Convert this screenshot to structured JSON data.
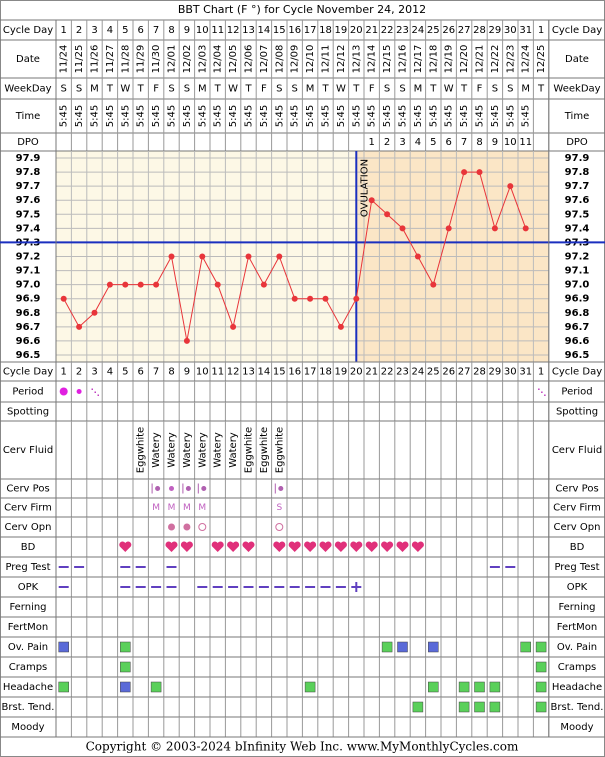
{
  "chart_data": {
    "type": "line",
    "title": "BBT Chart (F °) for Cycle November 24, 2012",
    "header_labels": [
      "Cycle Day",
      "Date",
      "WeekDay",
      "Time",
      "DPO"
    ],
    "categories": [
      "1",
      "2",
      "3",
      "4",
      "5",
      "6",
      "7",
      "8",
      "9",
      "10",
      "11",
      "12",
      "13",
      "14",
      "15",
      "16",
      "17",
      "18",
      "19",
      "20",
      "21",
      "22",
      "23",
      "24",
      "25",
      "26",
      "27",
      "28",
      "29",
      "30",
      "31",
      "1"
    ],
    "dates": [
      "11/24",
      "11/25",
      "11/26",
      "11/27",
      "11/28",
      "11/29",
      "11/30",
      "12/01",
      "12/02",
      "12/03",
      "12/04",
      "12/05",
      "12/06",
      "12/07",
      "12/08",
      "12/09",
      "12/10",
      "12/11",
      "12/12",
      "12/13",
      "12/14",
      "12/15",
      "12/16",
      "12/17",
      "12/18",
      "12/19",
      "12/20",
      "12/21",
      "12/22",
      "12/23",
      "12/24",
      "12/25"
    ],
    "weekdays": [
      "S",
      "S",
      "M",
      "T",
      "W",
      "T",
      "F",
      "S",
      "S",
      "M",
      "T",
      "W",
      "T",
      "F",
      "S",
      "S",
      "M",
      "T",
      "W",
      "T",
      "F",
      "S",
      "S",
      "M",
      "T",
      "W",
      "T",
      "F",
      "S",
      "S",
      "M",
      "T"
    ],
    "times": [
      "5:45",
      "5:45",
      "5:45",
      "5:45",
      "5:45",
      "5:45",
      "5:45",
      "5:45",
      "5:45",
      "5:45",
      "5:45",
      "5:45",
      "5:45",
      "5:45",
      "5:45",
      "5:45",
      "5:45",
      "5:45",
      "5:45",
      "5:45",
      "5:45",
      "5:45",
      "5:45",
      "5:45",
      "5:45",
      "5:45",
      "5:45",
      "5:45",
      "5:45",
      "5:45",
      "5:45",
      null
    ],
    "dpo": [
      null,
      null,
      null,
      null,
      null,
      null,
      null,
      null,
      null,
      null,
      null,
      null,
      null,
      null,
      null,
      null,
      null,
      null,
      null,
      null,
      "1",
      "2",
      "3",
      "4",
      "5",
      "6",
      "7",
      "8",
      "9",
      "10",
      "11",
      null
    ],
    "values": [
      96.9,
      96.7,
      96.8,
      97.0,
      97.0,
      97.0,
      97.0,
      97.2,
      96.6,
      97.2,
      97.0,
      96.7,
      97.2,
      97.0,
      97.2,
      96.9,
      96.9,
      96.9,
      96.7,
      96.9,
      97.6,
      97.5,
      97.4,
      97.2,
      97.0,
      97.4,
      97.8,
      97.8,
      97.4,
      97.7,
      97.4,
      null
    ],
    "color": "#e8353a",
    "ylim": [
      96.5,
      97.9
    ],
    "yticks": [
      97.9,
      97.8,
      97.7,
      97.6,
      97.5,
      97.4,
      97.3,
      97.2,
      97.1,
      {
        "value": 97.0,
        "label": "97.0"
      },
      96.9,
      96.8,
      96.7,
      96.6,
      96.5
    ],
    "coverline": 97.3,
    "coverline_color": "#1a2fbf",
    "ovulation_index": 19,
    "ovulation_label": "OVULATION",
    "follicular_color": "#fdf8e6",
    "luteal_color": "#fbe6c6",
    "observations": [
      {
        "label": "Period",
        "cells": [
          "dot",
          "dot-small",
          "spot",
          null,
          null,
          null,
          null,
          null,
          null,
          null,
          null,
          null,
          null,
          null,
          null,
          null,
          null,
          null,
          null,
          null,
          null,
          null,
          null,
          null,
          null,
          null,
          null,
          null,
          null,
          null,
          null,
          "spot"
        ]
      },
      {
        "label": "Spotting",
        "cells": [
          null,
          null,
          null,
          null,
          null,
          null,
          null,
          null,
          null,
          null,
          null,
          null,
          null,
          null,
          null,
          null,
          null,
          null,
          null,
          null,
          null,
          null,
          null,
          null,
          null,
          null,
          null,
          null,
          null,
          null,
          null,
          null
        ]
      },
      {
        "label": "Cerv Fluid",
        "cells": [
          null,
          null,
          null,
          null,
          null,
          "Eggwhite",
          "Watery",
          "Watery",
          "Watery",
          "Watery",
          "Watery",
          "Watery",
          "Eggwhite",
          "Eggwhite",
          "Eggwhite",
          null,
          null,
          null,
          null,
          null,
          null,
          null,
          null,
          null,
          null,
          null,
          null,
          null,
          null,
          null,
          null,
          null
        ]
      },
      {
        "label": "Cerv Pos",
        "cells": [
          null,
          null,
          null,
          null,
          null,
          null,
          "bar-dot",
          "dot-small",
          "bar-dot",
          "bar-dot",
          null,
          null,
          null,
          null,
          "bar-dot",
          null,
          null,
          null,
          null,
          null,
          null,
          null,
          null,
          null,
          null,
          null,
          null,
          null,
          null,
          null,
          null,
          null
        ]
      },
      {
        "label": "Cerv Firm",
        "cells": [
          null,
          null,
          null,
          null,
          null,
          null,
          "M",
          "M",
          "M",
          "M",
          null,
          null,
          null,
          null,
          "S",
          null,
          null,
          null,
          null,
          null,
          null,
          null,
          null,
          null,
          null,
          null,
          null,
          null,
          null,
          null,
          null,
          null
        ]
      },
      {
        "label": "Cerv Opn",
        "cells": [
          null,
          null,
          null,
          null,
          null,
          null,
          null,
          "filled",
          "filled",
          "open",
          null,
          null,
          null,
          null,
          "open",
          null,
          null,
          null,
          null,
          null,
          null,
          null,
          null,
          null,
          null,
          null,
          null,
          null,
          null,
          null,
          null,
          null
        ]
      },
      {
        "label": "BD",
        "cells": [
          null,
          null,
          null,
          null,
          "heart",
          null,
          null,
          "heart",
          "heart",
          null,
          "heart",
          "heart",
          "heart",
          null,
          "heart",
          "heart",
          "heart",
          "heart",
          "heart",
          "heart",
          "heart",
          "heart",
          "heart",
          "heart",
          null,
          null,
          null,
          null,
          null,
          null,
          null,
          null
        ]
      },
      {
        "label": "Preg Test",
        "cells": [
          "dash",
          "dash",
          null,
          null,
          "dash",
          "dash",
          null,
          "dash",
          null,
          null,
          null,
          null,
          null,
          null,
          null,
          null,
          null,
          null,
          null,
          null,
          null,
          null,
          null,
          null,
          null,
          null,
          null,
          null,
          "dash",
          "dash",
          null,
          null
        ]
      },
      {
        "label": "OPK",
        "cells": [
          "dash",
          null,
          null,
          null,
          "dash",
          "dash",
          "dash",
          "dash",
          null,
          "dash",
          "dash",
          "dash",
          "dash",
          "dash",
          "dash",
          "dash",
          "dash",
          "dash",
          "dash",
          "plus",
          null,
          null,
          null,
          null,
          null,
          null,
          null,
          null,
          null,
          null,
          null,
          null
        ]
      },
      {
        "label": "Ferning",
        "cells": [
          null,
          null,
          null,
          null,
          null,
          null,
          null,
          null,
          null,
          null,
          null,
          null,
          null,
          null,
          null,
          null,
          null,
          null,
          null,
          null,
          null,
          null,
          null,
          null,
          null,
          null,
          null,
          null,
          null,
          null,
          null,
          null
        ]
      },
      {
        "label": "FertMon",
        "cells": [
          null,
          null,
          null,
          null,
          null,
          null,
          null,
          null,
          null,
          null,
          null,
          null,
          null,
          null,
          null,
          null,
          null,
          null,
          null,
          null,
          null,
          null,
          null,
          null,
          null,
          null,
          null,
          null,
          null,
          null,
          null,
          null
        ]
      },
      {
        "label": "Ov. Pain",
        "cells": [
          "blue",
          null,
          null,
          null,
          "green",
          null,
          null,
          null,
          null,
          null,
          null,
          null,
          null,
          null,
          null,
          null,
          null,
          null,
          null,
          null,
          null,
          "green",
          "blue",
          null,
          "blue",
          null,
          null,
          null,
          null,
          null,
          "green",
          "green"
        ]
      },
      {
        "label": "Cramps",
        "cells": [
          null,
          null,
          null,
          null,
          "green",
          null,
          null,
          null,
          null,
          null,
          null,
          null,
          null,
          null,
          null,
          null,
          null,
          null,
          null,
          null,
          null,
          null,
          null,
          null,
          null,
          null,
          null,
          null,
          null,
          null,
          null,
          "green"
        ]
      },
      {
        "label": "Headache",
        "cells": [
          "green",
          null,
          null,
          null,
          "blue",
          null,
          "green",
          null,
          null,
          null,
          null,
          null,
          null,
          null,
          null,
          null,
          "green",
          null,
          null,
          null,
          null,
          null,
          null,
          null,
          "green",
          null,
          "green",
          "green",
          "green",
          null,
          null,
          "green"
        ]
      },
      {
        "label": "Brst. Tend.",
        "cells": [
          null,
          null,
          null,
          null,
          null,
          null,
          null,
          null,
          null,
          null,
          null,
          null,
          null,
          null,
          null,
          null,
          null,
          null,
          null,
          null,
          null,
          null,
          null,
          "green",
          null,
          null,
          "green",
          "green",
          "green",
          null,
          null,
          "green"
        ]
      },
      {
        "label": "Moody",
        "cells": [
          null,
          null,
          null,
          null,
          null,
          null,
          null,
          null,
          null,
          null,
          null,
          null,
          null,
          null,
          null,
          null,
          null,
          null,
          null,
          null,
          null,
          null,
          null,
          null,
          null,
          null,
          null,
          null,
          null,
          null,
          null,
          null
        ]
      }
    ],
    "footer": "Copyright © 2003-2024 bInfinity Web Inc.    www.MyMonthlyCycles.com"
  }
}
